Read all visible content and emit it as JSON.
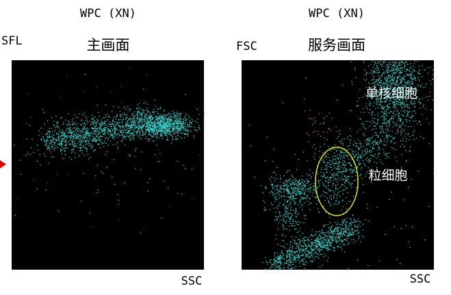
{
  "panels": [
    {
      "title": "WPC (XN)",
      "subtitle": "主画面",
      "y_label": "SFL",
      "x_label": "SSC"
    },
    {
      "title": "WPC (XN)",
      "subtitle": "服务画面",
      "y_label": "FSC",
      "x_label": "SSC",
      "annotations": [
        "单核细胞",
        "粒细胞"
      ]
    }
  ]
}
